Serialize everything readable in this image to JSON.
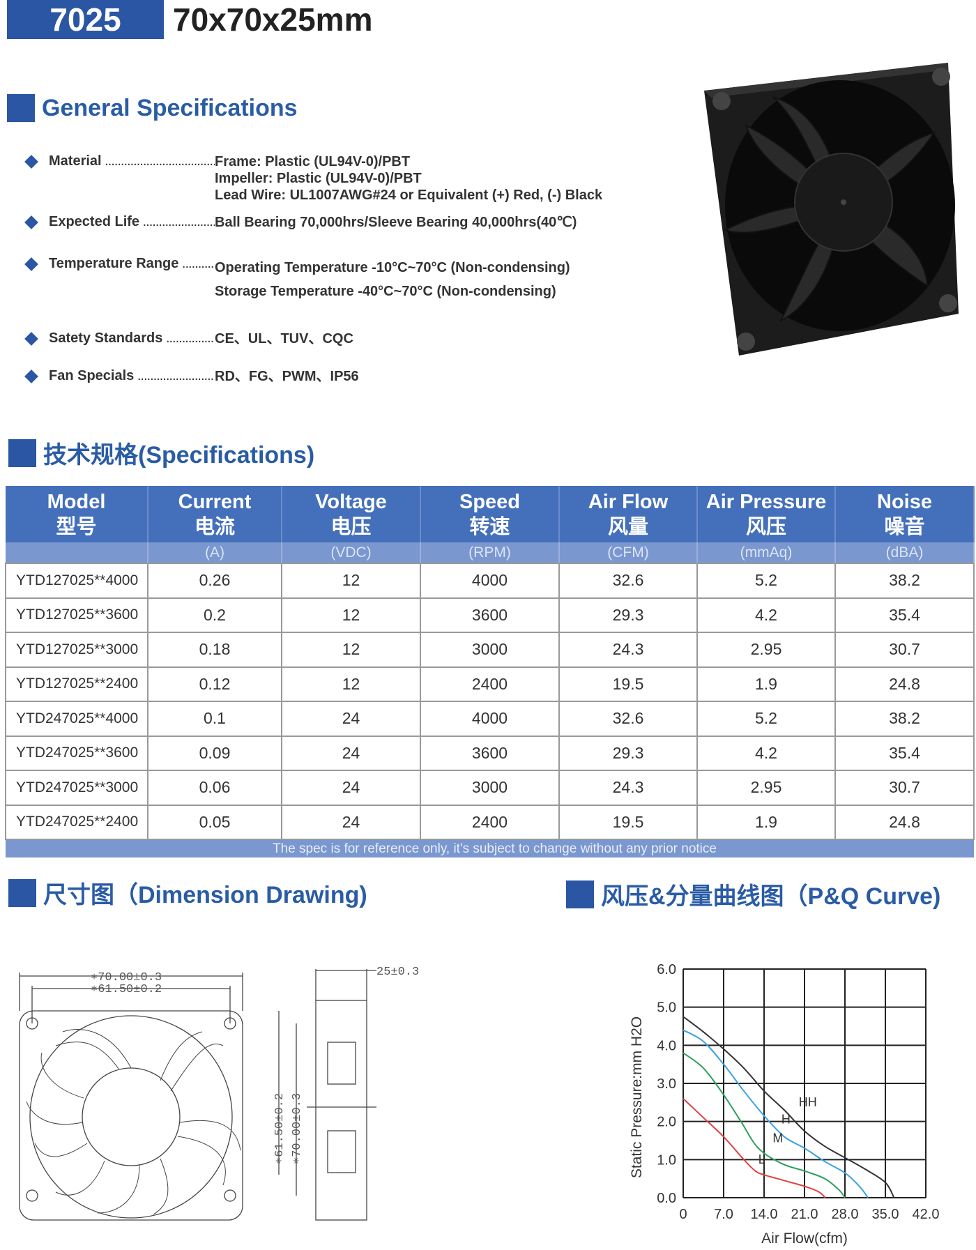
{
  "header": {
    "model": "7025",
    "dimensions": "70x70x25mm"
  },
  "general": {
    "title": "General Specifications",
    "items": [
      {
        "label": "Material",
        "values": [
          "Frame: Plastic (UL94V-0)/PBT",
          "Impeller: Plastic (UL94V-0)/PBT",
          "Lead Wire: UL1007AWG#24 or Equivalent (+) Red, (-) Black"
        ]
      },
      {
        "label": "Expected Life",
        "values": [
          "Ball Bearing 70,000hrs/Sleeve Bearing 40,000hrs(40℃)"
        ]
      },
      {
        "label": "Temperature Range",
        "values": [
          "Operating Temperature -10°C~70°C (Non-condensing)",
          "Storage Temperature -40°C~70°C (Non-condensing)"
        ]
      },
      {
        "label": "Satety Standards",
        "values": [
          "CE、UL、TUV、CQC"
        ]
      },
      {
        "label": "Fan Specials",
        "values": [
          "RD、FG、PWM、IP56"
        ]
      }
    ]
  },
  "specs": {
    "title": "技术规格(Specifications)",
    "columns": [
      {
        "en": "Model",
        "cn": "型号",
        "unit": ""
      },
      {
        "en": "Current",
        "cn": "电流",
        "unit": "(A)"
      },
      {
        "en": "Voltage",
        "cn": "电压",
        "unit": "(VDC)"
      },
      {
        "en": "Speed",
        "cn": "转速",
        "unit": "(RPM)"
      },
      {
        "en": "Air Flow",
        "cn": "风量",
        "unit": "(CFM)"
      },
      {
        "en": "Air Pressure",
        "cn": "风压",
        "unit": "(mmAq)"
      },
      {
        "en": "Noise",
        "cn": "噪音",
        "unit": "(dBA)"
      }
    ],
    "rows": [
      [
        "YTD127025**4000",
        "0.26",
        "12",
        "4000",
        "32.6",
        "5.2",
        "38.2"
      ],
      [
        "YTD127025**3600",
        "0.2",
        "12",
        "3600",
        "29.3",
        "4.2",
        "35.4"
      ],
      [
        "YTD127025**3000",
        "0.18",
        "12",
        "3000",
        "24.3",
        "2.95",
        "30.7"
      ],
      [
        "YTD127025**2400",
        "0.12",
        "12",
        "2400",
        "19.5",
        "1.9",
        "24.8"
      ],
      [
        "YTD247025**4000",
        "0.1",
        "24",
        "4000",
        "32.6",
        "5.2",
        "38.2"
      ],
      [
        "YTD247025**3600",
        "0.09",
        "24",
        "3600",
        "29.3",
        "4.2",
        "35.4"
      ],
      [
        "YTD247025**3000",
        "0.06",
        "24",
        "3000",
        "24.3",
        "2.95",
        "30.7"
      ],
      [
        "YTD247025**2400",
        "0.05",
        "24",
        "2400",
        "19.5",
        "1.9",
        "24.8"
      ]
    ],
    "footnote": "The spec is for reference only, it's subject to change without any prior notice"
  },
  "dimension": {
    "title": "尺寸图（Dimension Drawing)",
    "labels": [
      "∗70.00±0.3",
      "∗61.50±0.2",
      "25±0.3",
      "∗61.50±0.2",
      "∗70.00±0.3"
    ]
  },
  "pq": {
    "title": "风压&分量曲线图（P&Q Curve)"
  },
  "chart_data": {
    "type": "line",
    "xlabel": "Air Flow(cfm)",
    "ylabel": "Static Pressure:mm H2O",
    "xlim": [
      0,
      42
    ],
    "ylim": [
      0,
      6
    ],
    "xticks": [
      "0",
      "7.0",
      "14.0",
      "21.0",
      "28.0",
      "35.0",
      "42.0"
    ],
    "yticks": [
      "0.0",
      "1.0",
      "2.0",
      "3.0",
      "4.0",
      "5.0",
      "6.0"
    ],
    "grid": true,
    "series": [
      {
        "name": "HH",
        "color": "#333333",
        "points": [
          [
            0,
            4.75
          ],
          [
            3.5,
            4.35
          ],
          [
            7,
            3.9
          ],
          [
            10.5,
            3.4
          ],
          [
            14,
            2.8
          ],
          [
            17.5,
            2.3
          ],
          [
            21,
            1.75
          ],
          [
            24.5,
            1.35
          ],
          [
            28,
            1.05
          ],
          [
            31.5,
            0.75
          ],
          [
            35,
            0.4
          ],
          [
            36.5,
            0
          ]
        ]
      },
      {
        "name": "H",
        "color": "#3aa0e0",
        "points": [
          [
            0,
            4.4
          ],
          [
            3.5,
            4.1
          ],
          [
            7,
            3.5
          ],
          [
            10.5,
            2.8
          ],
          [
            14,
            2.15
          ],
          [
            17.5,
            1.6
          ],
          [
            21,
            1.3
          ],
          [
            24.5,
            0.95
          ],
          [
            28,
            0.65
          ],
          [
            30.5,
            0.3
          ],
          [
            32,
            0
          ]
        ]
      },
      {
        "name": "M",
        "color": "#2e9e5e",
        "points": [
          [
            0,
            3.8
          ],
          [
            3.5,
            3.4
          ],
          [
            7,
            2.7
          ],
          [
            10,
            2.0
          ],
          [
            13,
            1.3
          ],
          [
            17,
            0.9
          ],
          [
            21,
            0.7
          ],
          [
            24.5,
            0.5
          ],
          [
            27,
            0.2
          ],
          [
            28,
            0
          ]
        ]
      },
      {
        "name": "L",
        "color": "#e04040",
        "points": [
          [
            0,
            2.6
          ],
          [
            3.5,
            2.1
          ],
          [
            7,
            1.6
          ],
          [
            10.5,
            1.0
          ],
          [
            12.5,
            0.7
          ],
          [
            14,
            0.6
          ],
          [
            17.5,
            0.45
          ],
          [
            21,
            0.3
          ],
          [
            23.5,
            0.15
          ],
          [
            24.6,
            0
          ]
        ]
      }
    ],
    "labels": [
      {
        "text": "HH",
        "x": 20,
        "y": 2.4
      },
      {
        "text": "H",
        "x": 17,
        "y": 1.95
      },
      {
        "text": "M",
        "x": 15.5,
        "y": 1.45
      },
      {
        "text": "L",
        "x": 13,
        "y": 0.9
      }
    ]
  }
}
